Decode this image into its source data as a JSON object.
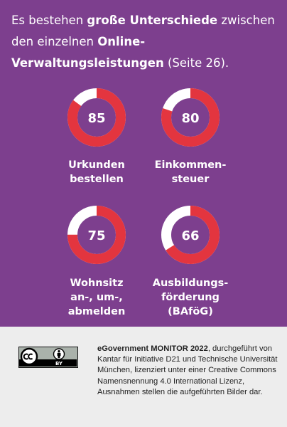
{
  "headline": {
    "part1": "Es bestehen ",
    "bold1": "große Unterschiede",
    "part2": " zwischen den einzelnen ",
    "bold2": "Online-Verwaltungsleistungen",
    "part3": " (Seite 26)."
  },
  "colors": {
    "background": "#7d3f8e",
    "ring_filled": "#e3353f",
    "ring_remaining": "#ffffff",
    "footer": "#ededed"
  },
  "chart_data": {
    "type": "pie",
    "max": 100,
    "items": [
      {
        "value": 85,
        "label_lines": [
          "Urkunden",
          "bestellen"
        ]
      },
      {
        "value": 80,
        "label_lines": [
          "Einkommen-",
          "steuer"
        ]
      },
      {
        "value": 75,
        "label_lines": [
          "Wohnsitz",
          "an-, um-,",
          "abmelden"
        ]
      },
      {
        "value": 66,
        "label_lines": [
          "Ausbildungs-",
          "förderung",
          "(BAföG)"
        ]
      }
    ]
  },
  "footer": {
    "license_badge_icons": [
      "cc-icon",
      "by-person-icon"
    ],
    "license_badge_text": "BY",
    "credit_bold": "eGovernment MONITOR 2022",
    "credit_rest": ", durchgeführt von Kantar für Initiative D21 und Technische Universität München, lizenziert unter einer Creative Commons Namensnennung 4.0 International Lizenz, Ausnahmen stellen die aufgeführten Bilder dar."
  }
}
